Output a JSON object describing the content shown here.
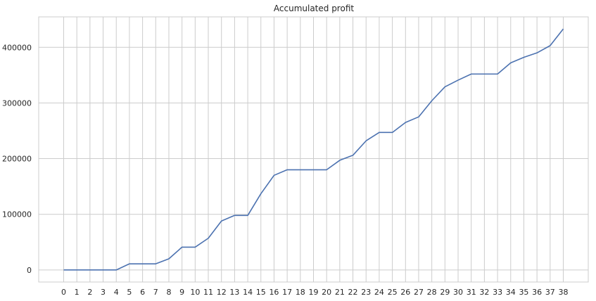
{
  "chart_data": {
    "type": "line",
    "title": "Accumulated profit",
    "xlabel": "",
    "ylabel": "",
    "x": [
      0,
      1,
      2,
      3,
      4,
      5,
      6,
      7,
      8,
      9,
      10,
      11,
      12,
      13,
      14,
      15,
      16,
      17,
      18,
      19,
      20,
      21,
      22,
      23,
      24,
      25,
      26,
      27,
      28,
      29,
      30,
      31,
      32,
      33,
      34,
      35,
      36,
      37,
      38
    ],
    "x_ticks": [
      "0",
      "1",
      "2",
      "3",
      "4",
      "5",
      "6",
      "7",
      "8",
      "9",
      "10",
      "11",
      "12",
      "13",
      "14",
      "15",
      "16",
      "17",
      "18",
      "19",
      "20",
      "21",
      "22",
      "23",
      "24",
      "25",
      "26",
      "27",
      "28",
      "29",
      "30",
      "31",
      "32",
      "33",
      "34",
      "35",
      "36",
      "37",
      "38"
    ],
    "series": [
      {
        "color": "#4c72b0",
        "values": [
          0,
          0,
          0,
          0,
          0,
          11000,
          11000,
          11000,
          20000,
          41000,
          41000,
          57000,
          88000,
          98000,
          98000,
          137000,
          170000,
          180000,
          180000,
          180000,
          180000,
          197000,
          206000,
          232000,
          247000,
          247000,
          265000,
          275000,
          304000,
          329000,
          341000,
          352000,
          352000,
          352000,
          372000,
          382000,
          390000,
          403000,
          433000
        ]
      }
    ],
    "xlim": [
      -1.9,
      39.9
    ],
    "ylim": [
      -21650,
      454650
    ],
    "y_ticks": [
      0,
      100000,
      200000,
      300000,
      400000
    ],
    "y_tick_labels": [
      "0",
      "100000",
      "200000",
      "300000",
      "400000"
    ],
    "grid": true,
    "colors": {
      "grid": "#cccccc",
      "line": "#4c72b0",
      "text": "#262626"
    }
  }
}
